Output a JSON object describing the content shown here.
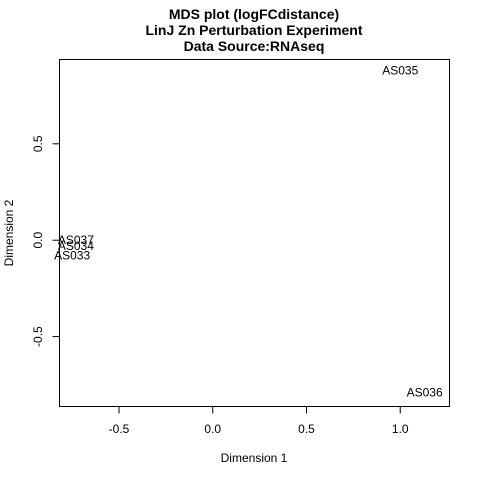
{
  "chart_data": {
    "type": "scatter",
    "title_lines": [
      "MDS plot (logFCdistance)",
      "LinJ Zn Perturbation Experiment",
      "Data Source:RNAseq"
    ],
    "xlabel": "Dimension 1",
    "ylabel": "Dimension 2",
    "xlim": [
      -0.82,
      1.26
    ],
    "ylim": [
      -0.86,
      0.94
    ],
    "x_ticks": [
      -0.5,
      0.0,
      0.5,
      1.0
    ],
    "x_tick_labels": [
      "-0.5",
      "0.0",
      "0.5",
      "1.0"
    ],
    "y_ticks": [
      -0.5,
      0.0,
      0.5
    ],
    "y_tick_labels": [
      "-0.5",
      "0.0",
      "0.5"
    ],
    "grid": false,
    "points": [
      {
        "label": "AS035",
        "x": 1.0,
        "y": 0.88
      },
      {
        "label": "AS037",
        "x": -0.73,
        "y": 0.0
      },
      {
        "label": "AS034",
        "x": -0.73,
        "y": -0.03
      },
      {
        "label": "AS033",
        "x": -0.75,
        "y": -0.08
      },
      {
        "label": "AS036",
        "x": 1.13,
        "y": -0.79
      }
    ]
  }
}
